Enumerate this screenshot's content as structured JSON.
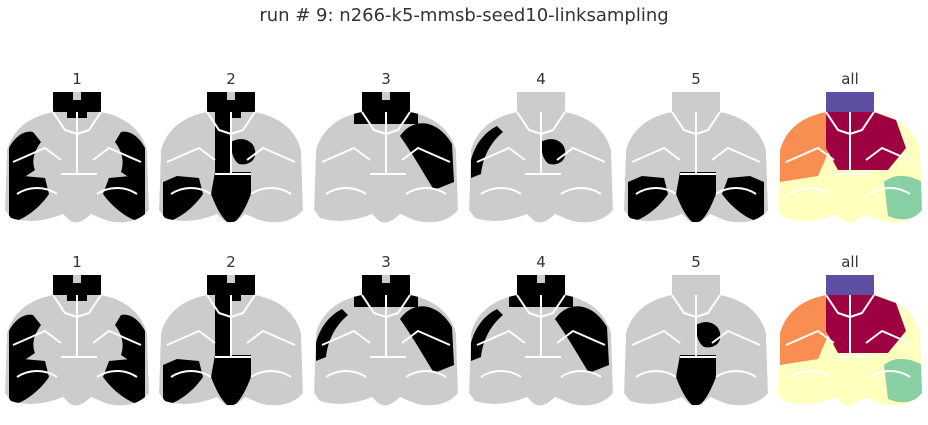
{
  "figure": {
    "title": "run # 9: n266-k5-mmsb-seed10-linksampling",
    "colors": {
      "background": "#ffffff",
      "region_off": "#cccccc",
      "region_on": "#000000",
      "borders": "#ffffff",
      "cluster_1": "#9e0142",
      "cluster_2": "#f98e52",
      "cluster_3": "#ffffbe",
      "cluster_4": "#88cfa4",
      "cluster_5": "#5e4fa2"
    },
    "rows": [
      {
        "panels": [
          {
            "label": "1",
            "kind": "binary",
            "highlight": [
              "olfactory",
              "lateral-left",
              "lateral-right",
              "posterior-left",
              "posterior-right"
            ]
          },
          {
            "label": "2",
            "kind": "binary",
            "highlight": [
              "olfactory",
              "medial-strip",
              "center-right-blob",
              "posterior-center",
              "posterior-left"
            ]
          },
          {
            "label": "3",
            "kind": "binary",
            "highlight": [
              "olfactory",
              "right-lateral",
              "top-midline"
            ]
          },
          {
            "label": "4",
            "kind": "binary",
            "highlight": [
              "left-edge",
              "center-right-blob"
            ]
          },
          {
            "label": "5",
            "kind": "binary",
            "highlight": [
              "posterior-center",
              "posterior-left",
              "posterior-right"
            ]
          },
          {
            "label": "all",
            "kind": "clusters"
          }
        ]
      },
      {
        "panels": [
          {
            "label": "1",
            "kind": "binary",
            "highlight": [
              "olfactory",
              "lateral-left",
              "lateral-right",
              "posterior-left",
              "posterior-right"
            ]
          },
          {
            "label": "2",
            "kind": "binary",
            "highlight": [
              "olfactory",
              "medial-strip",
              "posterior-center",
              "posterior-left"
            ]
          },
          {
            "label": "3",
            "kind": "binary",
            "highlight": [
              "olfactory",
              "right-lateral",
              "top-midline",
              "left-edge"
            ]
          },
          {
            "label": "4",
            "kind": "binary",
            "highlight": [
              "olfactory",
              "left-edge",
              "right-lateral",
              "top-midline"
            ]
          },
          {
            "label": "5",
            "kind": "binary",
            "highlight": [
              "center-right-blob",
              "posterior-center"
            ]
          },
          {
            "label": "all",
            "kind": "clusters"
          }
        ]
      }
    ]
  }
}
